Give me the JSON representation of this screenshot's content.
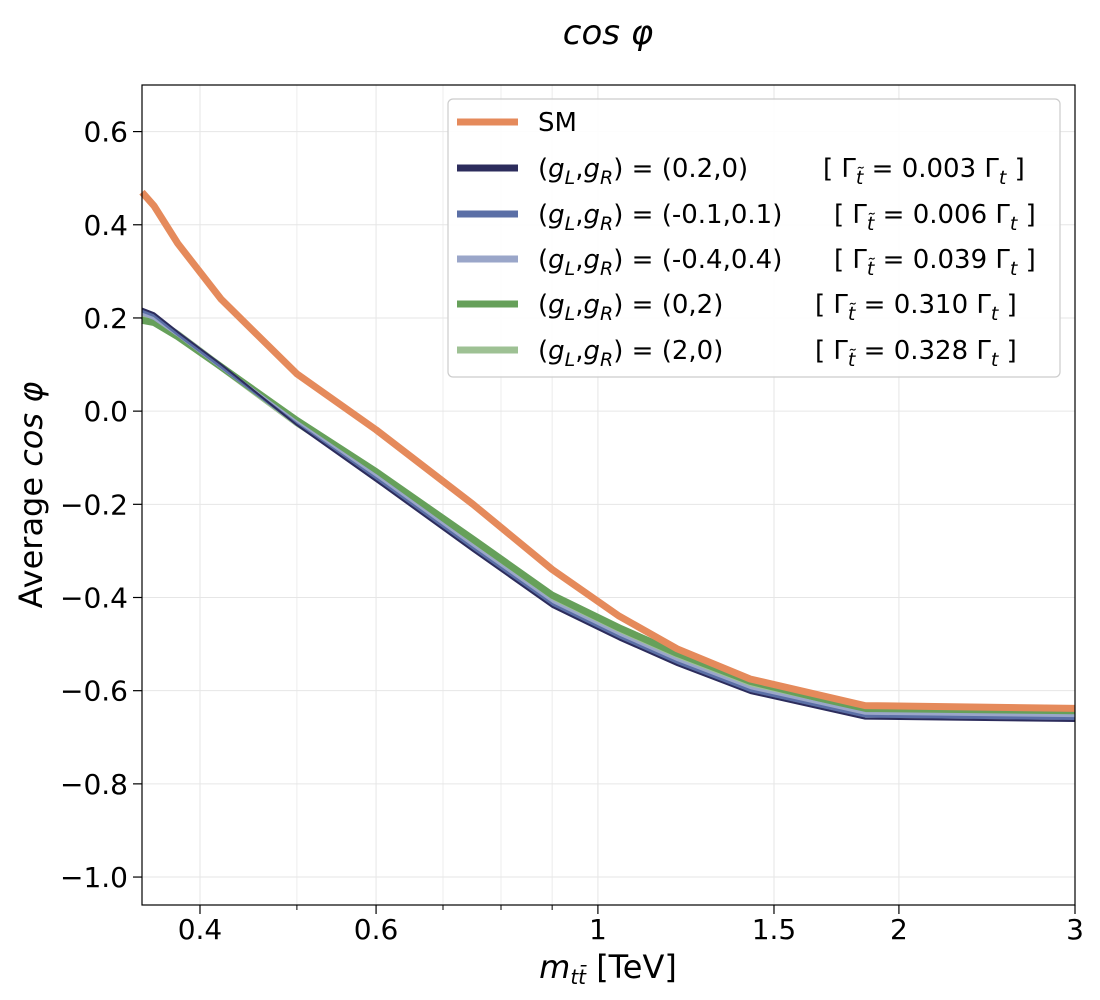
{
  "chart_data": {
    "type": "line",
    "title": "cos φ",
    "xlabel": "m_tt̄  [TeV]",
    "ylabel": "Average cos φ",
    "x_scale": "log",
    "xlim": [
      0.35,
      3.0
    ],
    "ylim": [
      -1.06,
      0.7
    ],
    "grid": true,
    "legend_position": "top-right",
    "x_ticks": [
      {
        "value": 0.4,
        "label": "0.4"
      },
      {
        "value": 0.6,
        "label": "0.6"
      },
      {
        "value": 1.0,
        "label": "1"
      },
      {
        "value": 1.5,
        "label": "1.5"
      },
      {
        "value": 2.0,
        "label": "2"
      },
      {
        "value": 3.0,
        "label": "3"
      }
    ],
    "y_ticks": [
      {
        "value": 0.6,
        "label": "0.6"
      },
      {
        "value": 0.4,
        "label": "0.4"
      },
      {
        "value": 0.2,
        "label": "0.2"
      },
      {
        "value": 0.0,
        "label": "0.0"
      },
      {
        "value": -0.2,
        "label": "−0.2"
      },
      {
        "value": -0.4,
        "label": "−0.4"
      },
      {
        "value": -0.6,
        "label": "−0.6"
      },
      {
        "value": -0.8,
        "label": "−0.8"
      },
      {
        "value": -1.0,
        "label": "−1.0"
      }
    ],
    "series": [
      {
        "name": "SM",
        "width_label": "",
        "color": "#e58a5b",
        "line_width": 7,
        "x": [
          0.35,
          0.36,
          0.38,
          0.42,
          0.5,
          0.6,
          0.75,
          0.9,
          1.05,
          1.2,
          1.42,
          1.85,
          3.0
        ],
        "y": [
          0.47,
          0.44,
          0.36,
          0.24,
          0.08,
          -0.04,
          -0.2,
          -0.34,
          -0.44,
          -0.51,
          -0.575,
          -0.632,
          -0.638
        ]
      },
      {
        "name": "(g_L,g_R) = (0.2,0)",
        "width_label": "[ Γ_t̃ = 0.003 Γ_t ]",
        "color": "#2c2c5c",
        "line_width": 2,
        "x": [
          0.35,
          0.36,
          0.38,
          0.42,
          0.5,
          0.6,
          0.75,
          0.9,
          1.05,
          1.2,
          1.42,
          1.85,
          3.0
        ],
        "y": [
          0.22,
          0.21,
          0.17,
          0.1,
          -0.03,
          -0.15,
          -0.3,
          -0.42,
          -0.49,
          -0.545,
          -0.605,
          -0.66,
          -0.665
        ]
      },
      {
        "name": "(g_L,g_R) = (-0.1,0.1)",
        "width_label": "[ Γ_t̃ = 0.006 Γ_t ]",
        "color": "#5b6fa6",
        "line_width": 3,
        "x": [
          0.35,
          0.36,
          0.38,
          0.42,
          0.5,
          0.6,
          0.75,
          0.9,
          1.05,
          1.2,
          1.42,
          1.85,
          3.0
        ],
        "y": [
          0.215,
          0.205,
          0.165,
          0.095,
          -0.028,
          -0.145,
          -0.295,
          -0.415,
          -0.485,
          -0.54,
          -0.6,
          -0.655,
          -0.66
        ]
      },
      {
        "name": "(g_L,g_R) = (-0.4,0.4)",
        "width_label": "[ Γ_t̃ = 0.039 Γ_t ]",
        "color": "#9aa6c9",
        "line_width": 4,
        "x": [
          0.35,
          0.36,
          0.38,
          0.42,
          0.5,
          0.6,
          0.75,
          0.9,
          1.05,
          1.2,
          1.42,
          1.85,
          3.0
        ],
        "y": [
          0.21,
          0.2,
          0.165,
          0.095,
          -0.025,
          -0.14,
          -0.29,
          -0.41,
          -0.48,
          -0.535,
          -0.595,
          -0.65,
          -0.655
        ]
      },
      {
        "name": "(g_L,g_R) = (0,2)",
        "width_label": "[ Γ_t̃ = 0.310 Γ_t ]",
        "color": "#66a05a",
        "line_width": 7,
        "x": [
          0.35,
          0.36,
          0.38,
          0.42,
          0.5,
          0.6,
          0.75,
          0.9,
          1.05,
          1.2,
          1.42,
          1.85,
          3.0
        ],
        "y": [
          0.195,
          0.19,
          0.16,
          0.095,
          -0.02,
          -0.13,
          -0.275,
          -0.395,
          -0.465,
          -0.52,
          -0.58,
          -0.64,
          -0.645
        ]
      },
      {
        "name": "(g_L,g_R) = (2,0)",
        "width_label": "[ Γ_t̃ = 0.328 Γ_t ]",
        "color": "#9ec194",
        "line_width": 7,
        "x": [
          0.35,
          0.36,
          0.38,
          0.42,
          0.5,
          0.6,
          0.75,
          0.9,
          1.05,
          1.2,
          1.42,
          1.85,
          3.0
        ],
        "y": [
          0.205,
          0.198,
          0.165,
          0.095,
          -0.025,
          -0.135,
          -0.283,
          -0.403,
          -0.473,
          -0.528,
          -0.588,
          -0.645,
          -0.65
        ]
      }
    ]
  }
}
